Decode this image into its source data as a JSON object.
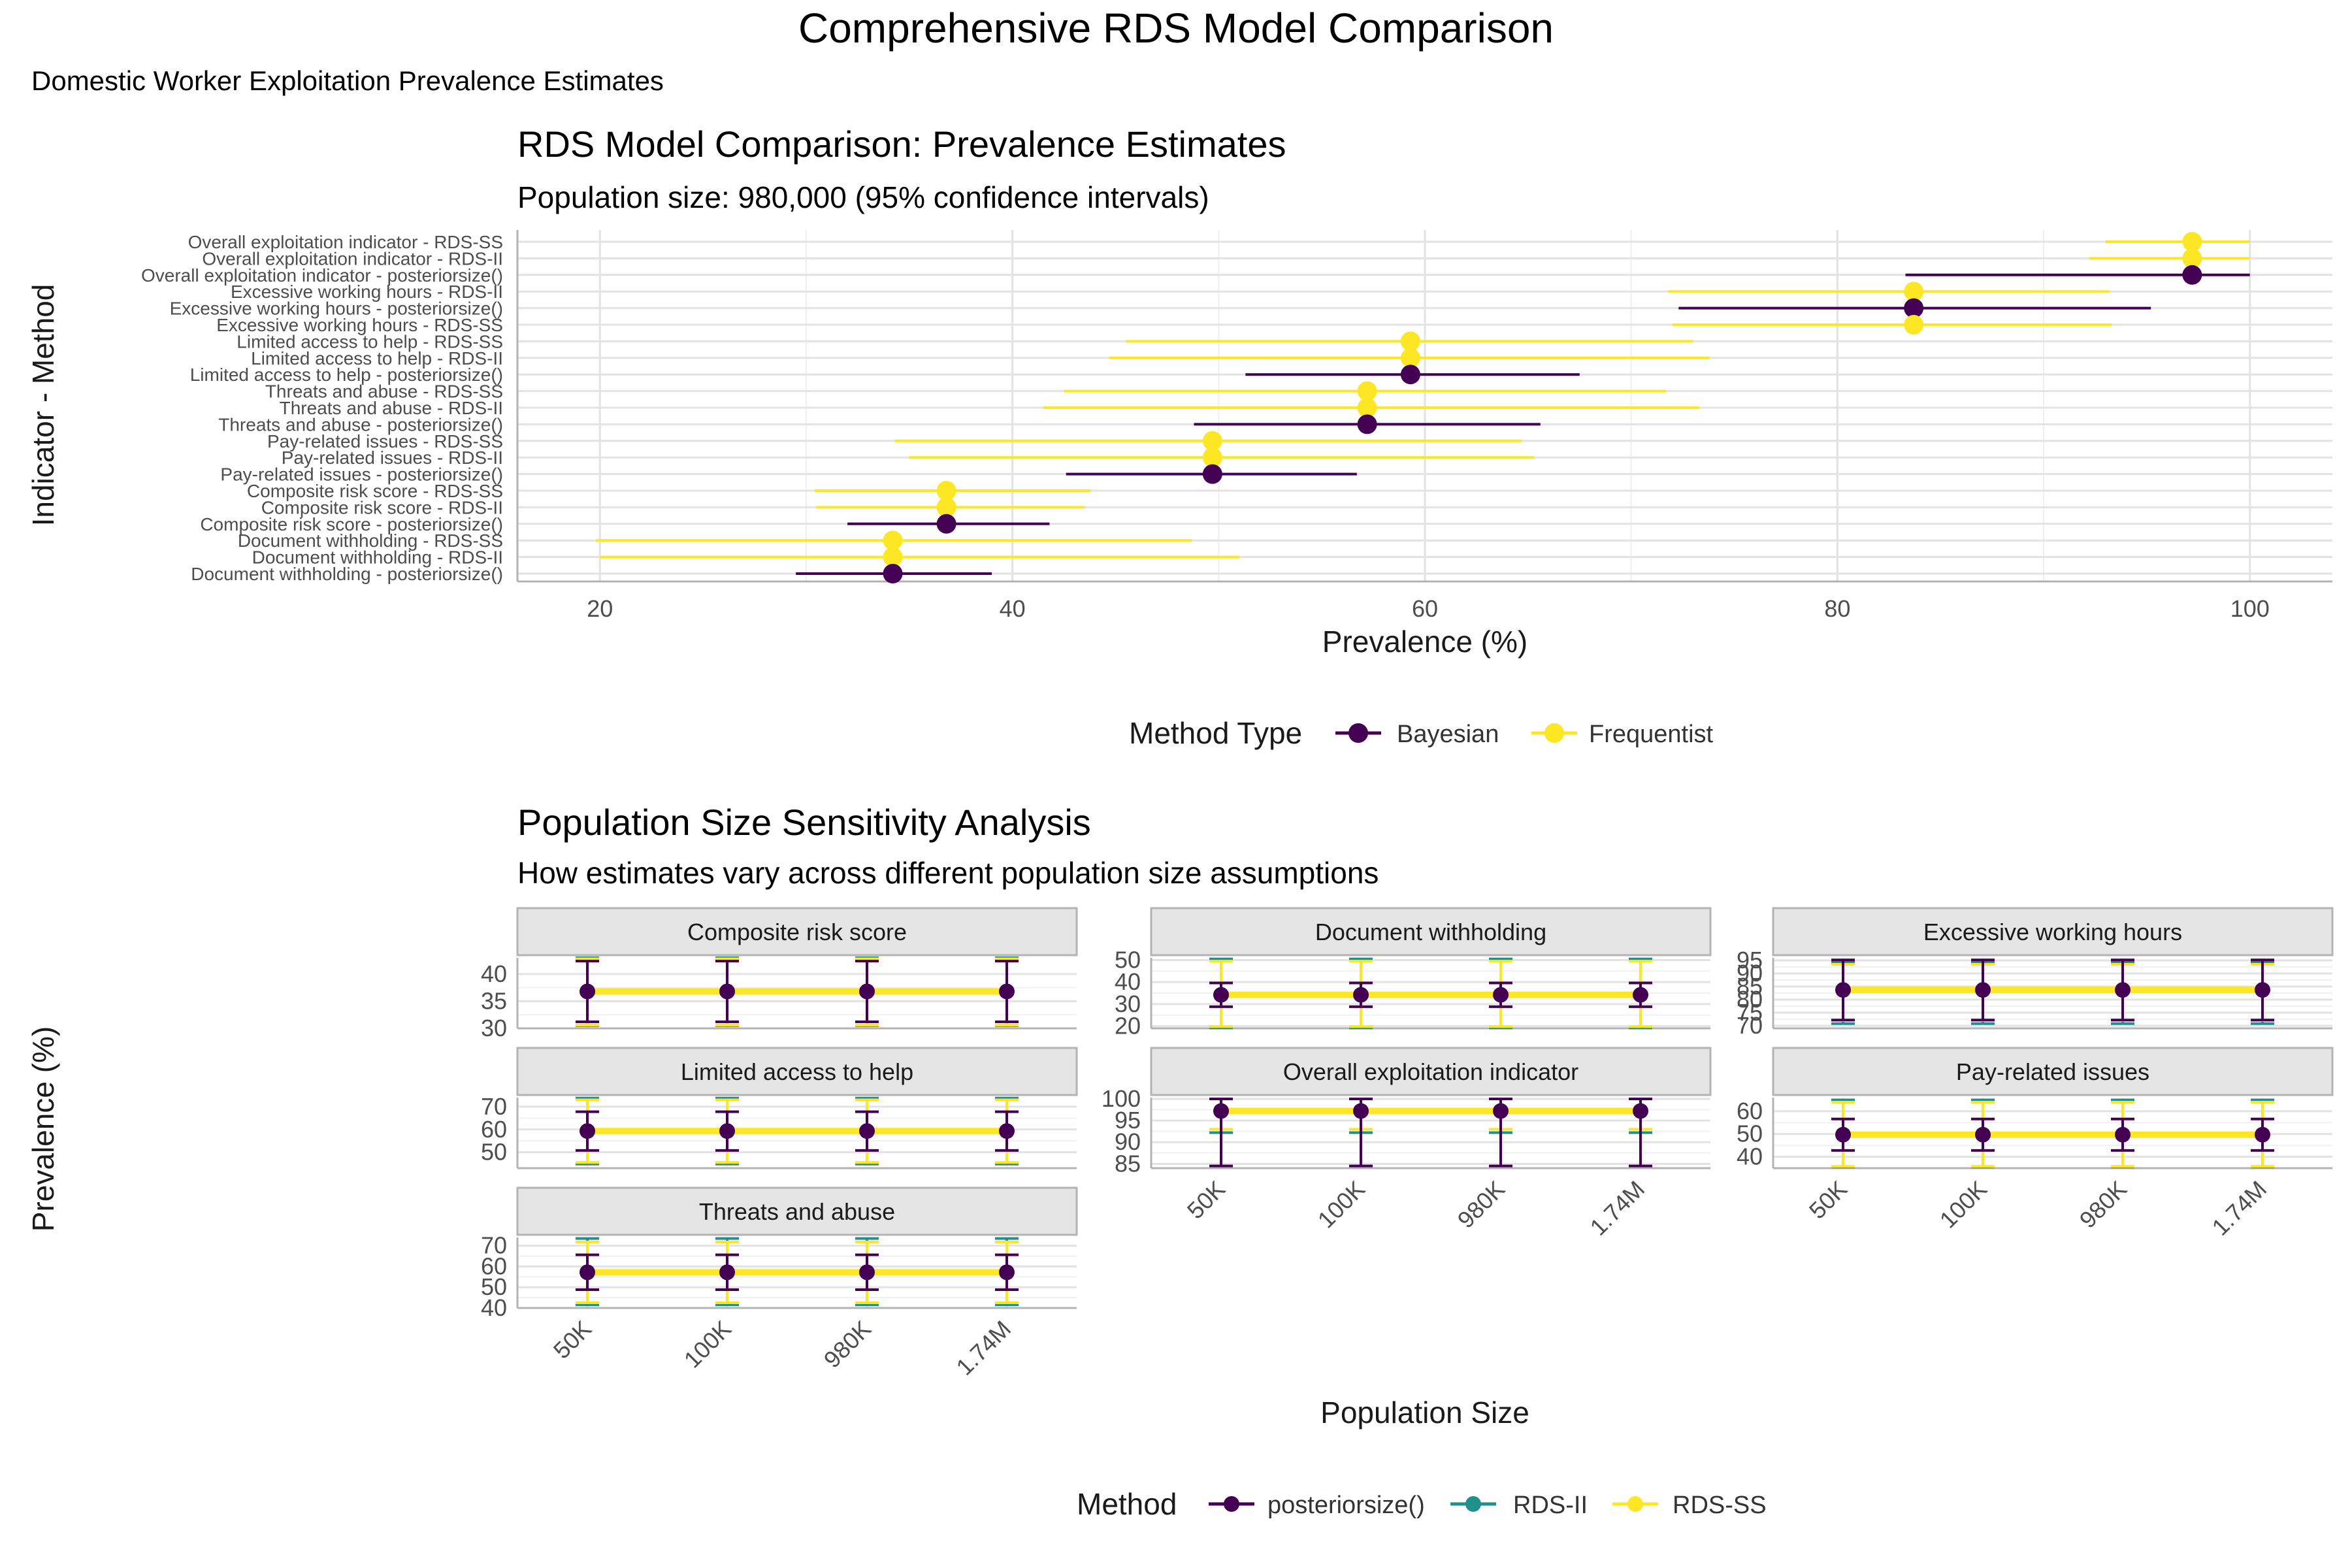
{
  "title": "Comprehensive RDS Model Comparison",
  "subtitle": "Domestic Worker Exploitation Prevalence Estimates",
  "colors": {
    "Bayesian": "#440154",
    "Frequentist": "#FDE725",
    "posteriorsize()": "#440154",
    "RDS-II": "#21908C",
    "RDS-SS": "#FDE725"
  },
  "chart_data": [
    {
      "type": "scatter",
      "title": "RDS Model Comparison: Prevalence Estimates",
      "subtitle": "Population size: 980,000 (95% confidence intervals)",
      "xlabel": "Prevalence (%)",
      "ylabel": "Indicator - Method",
      "xlim": [
        16,
        104
      ],
      "xticks": [
        20,
        40,
        60,
        80,
        100
      ],
      "legend_title": "Method Type",
      "legend": [
        "Bayesian",
        "Frequentist"
      ],
      "legend_position": "bottom",
      "grid": true,
      "rows": [
        {
          "label": "Overall exploitation indicator - RDS-SS",
          "type": "Frequentist",
          "est": 97.2,
          "lo": 93.0,
          "hi": 100.0
        },
        {
          "label": "Overall exploitation indicator - RDS-II",
          "type": "Frequentist",
          "est": 97.2,
          "lo": 92.2,
          "hi": 100.0
        },
        {
          "label": "Overall exploitation indicator - posteriorsize()",
          "type": "Bayesian",
          "est": 97.2,
          "lo": 83.3,
          "hi": 100.0
        },
        {
          "label": "Excessive working hours - RDS-II",
          "type": "Frequentist",
          "est": 83.7,
          "lo": 71.8,
          "hi": 93.2
        },
        {
          "label": "Excessive working hours - posteriorsize()",
          "type": "Bayesian",
          "est": 83.7,
          "lo": 72.3,
          "hi": 95.2
        },
        {
          "label": "Excessive working hours - RDS-SS",
          "type": "Frequentist",
          "est": 83.7,
          "lo": 72.0,
          "hi": 93.3
        },
        {
          "label": "Limited access to help - RDS-SS",
          "type": "Frequentist",
          "est": 59.3,
          "lo": 45.5,
          "hi": 73.0
        },
        {
          "label": "Limited access to help - RDS-II",
          "type": "Frequentist",
          "est": 59.3,
          "lo": 44.7,
          "hi": 73.8
        },
        {
          "label": "Limited access to help - posteriorsize()",
          "type": "Bayesian",
          "est": 59.3,
          "lo": 51.3,
          "hi": 67.5
        },
        {
          "label": "Threats and abuse - RDS-SS",
          "type": "Frequentist",
          "est": 57.2,
          "lo": 42.5,
          "hi": 71.7
        },
        {
          "label": "Threats and abuse - RDS-II",
          "type": "Frequentist",
          "est": 57.2,
          "lo": 41.5,
          "hi": 73.3
        },
        {
          "label": "Threats and abuse - posteriorsize()",
          "type": "Bayesian",
          "est": 57.2,
          "lo": 48.8,
          "hi": 65.6
        },
        {
          "label": "Pay-related issues - RDS-SS",
          "type": "Frequentist",
          "est": 49.7,
          "lo": 34.3,
          "hi": 64.7
        },
        {
          "label": "Pay-related issues - RDS-II",
          "type": "Frequentist",
          "est": 49.7,
          "lo": 35.0,
          "hi": 65.3
        },
        {
          "label": "Pay-related issues - posteriorsize()",
          "type": "Bayesian",
          "est": 49.7,
          "lo": 42.6,
          "hi": 56.7
        },
        {
          "label": "Composite risk score - RDS-SS",
          "type": "Frequentist",
          "est": 36.8,
          "lo": 30.4,
          "hi": 43.8
        },
        {
          "label": "Composite risk score - RDS-II",
          "type": "Frequentist",
          "est": 36.8,
          "lo": 30.5,
          "hi": 43.5
        },
        {
          "label": "Composite risk score - posteriorsize()",
          "type": "Bayesian",
          "est": 36.8,
          "lo": 32.0,
          "hi": 41.8
        },
        {
          "label": "Document withholding - RDS-SS",
          "type": "Frequentist",
          "est": 34.2,
          "lo": 19.8,
          "hi": 48.7
        },
        {
          "label": "Document withholding - RDS-II",
          "type": "Frequentist",
          "est": 34.2,
          "lo": 20.0,
          "hi": 51.0
        },
        {
          "label": "Document withholding - posteriorsize()",
          "type": "Bayesian",
          "est": 34.2,
          "lo": 29.5,
          "hi": 39.0
        }
      ]
    },
    {
      "type": "line",
      "title": "Population Size Sensitivity Analysis",
      "subtitle": "How estimates vary across different population size assumptions",
      "xlabel": "Population Size",
      "ylabel": "Prevalence (%)",
      "categories": [
        "50K",
        "100K",
        "980K",
        "1.74M"
      ],
      "legend_title": "Method",
      "legend": [
        "posteriorsize()",
        "RDS-II",
        "RDS-SS"
      ],
      "legend_position": "bottom",
      "grid": true,
      "facets": [
        {
          "name": "Composite risk score",
          "ylim": [
            30,
            43
          ],
          "yticks": [
            30,
            35,
            40
          ],
          "est": 36.8,
          "intervals": {
            "posteriorsize()": [
              31.2,
              42.4
            ],
            "RDS-II": [
              30.5,
              43.0
            ],
            "RDS-SS": [
              30.6,
              42.8
            ]
          }
        },
        {
          "name": "Document withholding",
          "ylim": [
            19,
            51
          ],
          "yticks": [
            20,
            30,
            40,
            50
          ],
          "est": 34.2,
          "intervals": {
            "posteriorsize()": [
              28.8,
              39.6
            ],
            "RDS-II": [
              19.2,
              50.5
            ],
            "RDS-SS": [
              19.8,
              49.5
            ]
          }
        },
        {
          "name": "Excessive working hours",
          "ylim": [
            69,
            96
          ],
          "yticks": [
            70,
            75,
            80,
            85,
            90,
            95
          ],
          "est": 83.7,
          "intervals": {
            "posteriorsize()": [
              72.2,
              95.2
            ],
            "RDS-II": [
              70.8,
              94.5
            ],
            "RDS-SS": [
              72.0,
              93.5
            ]
          }
        },
        {
          "name": "Limited access to help",
          "ylim": [
            43,
            74
          ],
          "yticks": [
            50,
            60,
            70
          ],
          "est": 59.3,
          "intervals": {
            "posteriorsize()": [
              50.8,
              67.8
            ],
            "RDS-II": [
              44.8,
              73.8
            ],
            "RDS-SS": [
              45.5,
              73.0
            ]
          }
        },
        {
          "name": "Overall exploitation indicator",
          "ylim": [
            84,
            100.3
          ],
          "yticks": [
            85,
            90,
            95,
            100
          ],
          "est": 97.2,
          "intervals": {
            "posteriorsize()": [
              84.5,
              100.0
            ],
            "RDS-II": [
              92.2,
              100.0
            ],
            "RDS-SS": [
              93.0,
              100.0
            ]
          }
        },
        {
          "name": "Pay-related issues",
          "ylim": [
            35,
            66
          ],
          "yticks": [
            40,
            50,
            60
          ],
          "est": 49.7,
          "intervals": {
            "posteriorsize()": [
              42.8,
              56.6
            ],
            "RDS-II": [
              35.5,
              65.0
            ],
            "RDS-SS": [
              35.8,
              64.0
            ]
          }
        },
        {
          "name": "Threats and abuse",
          "ylim": [
            40,
            74
          ],
          "yticks": [
            40,
            50,
            60,
            70
          ],
          "est": 57.2,
          "intervals": {
            "posteriorsize()": [
              48.8,
              65.6
            ],
            "RDS-II": [
              41.5,
              73.5
            ],
            "RDS-SS": [
              42.5,
              71.8
            ]
          }
        }
      ]
    }
  ]
}
